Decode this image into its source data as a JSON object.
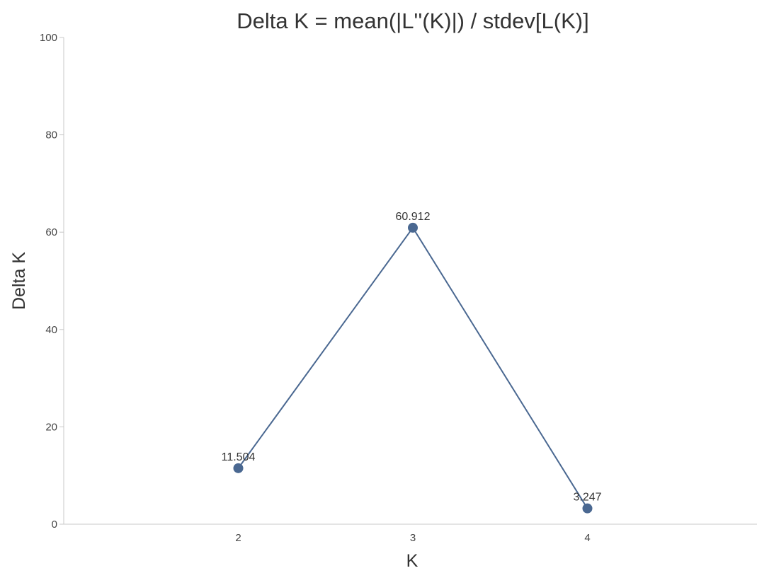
{
  "chart_data": {
    "type": "line",
    "title": "Delta K = mean(|L''(K)|) / stdev[L(K)]",
    "xlabel": "K",
    "ylabel": "Delta K",
    "x": [
      2,
      3,
      4
    ],
    "xlim": [
      1,
      5
    ],
    "ylim": [
      0,
      100
    ],
    "yticks": [
      0,
      20,
      40,
      60,
      80,
      100
    ],
    "xticks": [
      2,
      3,
      4
    ],
    "grid": false,
    "series": [
      {
        "values": [
          11.504,
          60.912,
          3.247
        ],
        "labels": [
          "11.504",
          "60.912",
          "3.247"
        ],
        "color": "#4a6891"
      }
    ]
  }
}
